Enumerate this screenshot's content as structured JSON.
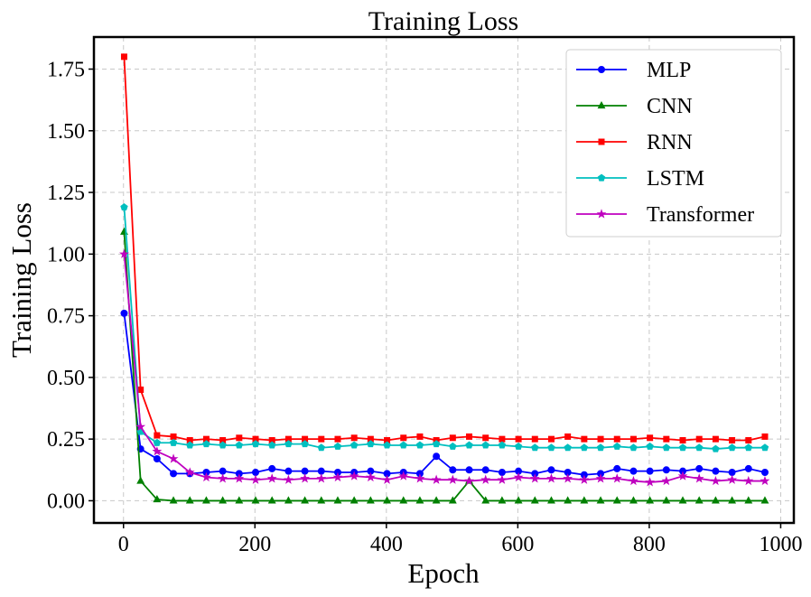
{
  "chart_data": {
    "type": "line",
    "title": "Training Loss",
    "xlabel": "Epoch",
    "ylabel": "Training Loss",
    "xlim": [
      -45,
      1020
    ],
    "ylim": [
      -0.09,
      1.88
    ],
    "xticks": [
      0,
      200,
      400,
      600,
      800,
      1000
    ],
    "xtick_labels": [
      "0",
      "200",
      "400",
      "600",
      "800",
      "1000"
    ],
    "yticks": [
      0.0,
      0.25,
      0.5,
      0.75,
      1.0,
      1.25,
      1.5,
      1.75
    ],
    "ytick_labels": [
      "0.00",
      "0.25",
      "0.50",
      "0.75",
      "1.00",
      "1.25",
      "1.50",
      "1.75"
    ],
    "grid": true,
    "legend_position": "top-right",
    "x": [
      1,
      26,
      51,
      76,
      101,
      126,
      151,
      176,
      201,
      226,
      251,
      276,
      301,
      326,
      351,
      376,
      401,
      426,
      451,
      476,
      501,
      526,
      551,
      576,
      601,
      626,
      651,
      676,
      701,
      726,
      751,
      776,
      801,
      826,
      851,
      876,
      901,
      926,
      951,
      976
    ],
    "series": [
      {
        "name": "MLP",
        "color": "#0000ff",
        "marker": "circle",
        "values": [
          0.76,
          0.21,
          0.17,
          0.11,
          0.11,
          0.115,
          0.12,
          0.11,
          0.115,
          0.13,
          0.12,
          0.12,
          0.12,
          0.115,
          0.115,
          0.12,
          0.11,
          0.115,
          0.11,
          0.18,
          0.125,
          0.125,
          0.125,
          0.115,
          0.12,
          0.11,
          0.125,
          0.115,
          0.105,
          0.11,
          0.13,
          0.12,
          0.12,
          0.125,
          0.12,
          0.13,
          0.12,
          0.115,
          0.13,
          0.115
        ]
      },
      {
        "name": "CNN",
        "color": "#008000",
        "marker": "triangle",
        "values": [
          1.09,
          0.08,
          0.005,
          0.0,
          0.0,
          0.0,
          0.0,
          0.0,
          0.0,
          0.0,
          0.0,
          0.0,
          0.0,
          0.0,
          0.0,
          0.0,
          0.0,
          0.0,
          0.0,
          0.0,
          0.0,
          0.08,
          0.0,
          0.0,
          0.0,
          0.0,
          0.0,
          0.0,
          0.0,
          0.0,
          0.0,
          0.0,
          0.0,
          0.0,
          0.0,
          0.0,
          0.0,
          0.0,
          0.0,
          0.0
        ]
      },
      {
        "name": "RNN",
        "color": "#ff0000",
        "marker": "square",
        "values": [
          1.8,
          0.45,
          0.265,
          0.26,
          0.245,
          0.25,
          0.245,
          0.255,
          0.25,
          0.245,
          0.25,
          0.25,
          0.25,
          0.25,
          0.255,
          0.25,
          0.245,
          0.255,
          0.26,
          0.245,
          0.255,
          0.26,
          0.255,
          0.25,
          0.25,
          0.25,
          0.25,
          0.26,
          0.25,
          0.25,
          0.25,
          0.25,
          0.255,
          0.25,
          0.245,
          0.25,
          0.25,
          0.245,
          0.245,
          0.26
        ]
      },
      {
        "name": "LSTM",
        "color": "#00bfbf",
        "marker": "pentagon",
        "values": [
          1.19,
          0.28,
          0.235,
          0.235,
          0.225,
          0.23,
          0.225,
          0.225,
          0.23,
          0.225,
          0.23,
          0.23,
          0.215,
          0.22,
          0.225,
          0.23,
          0.225,
          0.225,
          0.225,
          0.23,
          0.22,
          0.225,
          0.225,
          0.225,
          0.22,
          0.215,
          0.215,
          0.215,
          0.215,
          0.215,
          0.22,
          0.215,
          0.22,
          0.215,
          0.215,
          0.215,
          0.21,
          0.215,
          0.215,
          0.215
        ]
      },
      {
        "name": "Transformer",
        "color": "#bf00bf",
        "marker": "star",
        "values": [
          1.0,
          0.3,
          0.2,
          0.17,
          0.115,
          0.095,
          0.09,
          0.09,
          0.085,
          0.09,
          0.085,
          0.09,
          0.09,
          0.095,
          0.1,
          0.095,
          0.085,
          0.1,
          0.09,
          0.085,
          0.085,
          0.08,
          0.085,
          0.085,
          0.095,
          0.09,
          0.09,
          0.09,
          0.085,
          0.09,
          0.09,
          0.08,
          0.075,
          0.08,
          0.1,
          0.09,
          0.08,
          0.085,
          0.08,
          0.08
        ]
      }
    ]
  }
}
